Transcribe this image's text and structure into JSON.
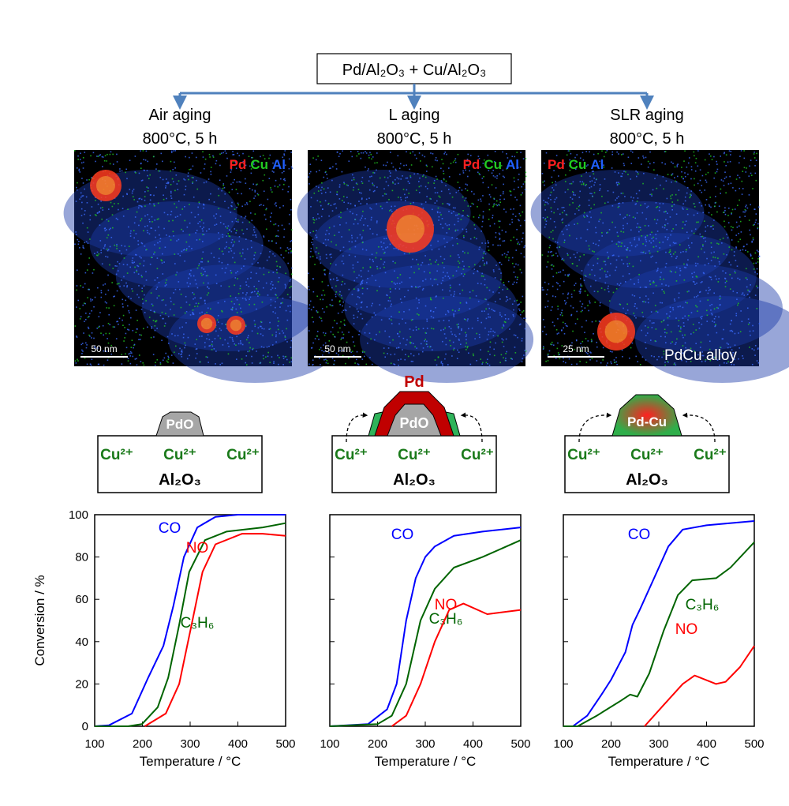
{
  "header": {
    "sample": "Pd/Al₂O₃ + Cu/Al₂O₃"
  },
  "panels": [
    {
      "title": "Air aging",
      "condition": "800°C, 5 h",
      "map_legend": [
        "Pd",
        "Cu",
        "Al"
      ],
      "scale_bar": "50 nm",
      "image_label": "",
      "schematic": {
        "particle": "PdO",
        "top_label": "",
        "ions": [
          "Cu²⁺",
          "Cu²⁺",
          "Cu²⁺"
        ],
        "support": "Al₂O₃"
      }
    },
    {
      "title": "L aging",
      "condition": "800°C, 5 h",
      "map_legend": [
        "Pd",
        "Cu",
        "Al"
      ],
      "scale_bar": "50 nm",
      "image_label": "",
      "schematic": {
        "particle": "PdO",
        "top_label": "Pd",
        "ions": [
          "Cu²⁺",
          "Cu²⁺",
          "Cu²⁺"
        ],
        "support": "Al₂O₃"
      }
    },
    {
      "title": "SLR aging",
      "condition": "800°C, 5 h",
      "map_legend": [
        "Pd",
        "Cu",
        "Al"
      ],
      "scale_bar": "25 nm",
      "image_label": "PdCu alloy",
      "schematic": {
        "particle": "Pd-Cu",
        "top_label": "",
        "ions": [
          "Cu²⁺",
          "Cu²⁺",
          "Cu²⁺"
        ],
        "support": "Al₂O₃"
      }
    }
  ],
  "colors": {
    "Pd": "#ff2020",
    "Cu": "#22cc22",
    "Al": "#2060ff",
    "CO": "#0000ff",
    "C3H6": "#006400",
    "NO": "#ff0000",
    "arrow": "#4f81bd"
  },
  "chart_data": [
    {
      "type": "line",
      "xlabel": "Temperature / °C",
      "ylabel": "Conversion / %",
      "xlim": [
        100,
        500
      ],
      "ylim": [
        0,
        100
      ],
      "xticks": [
        100,
        200,
        300,
        400,
        500
      ],
      "yticks": [
        0,
        20,
        40,
        60,
        80,
        100
      ],
      "series": [
        {
          "name": "CO",
          "x": [
            100,
            130,
            178,
            212,
            244,
            265,
            287,
            315,
            353,
            400,
            500
          ],
          "y": [
            0,
            0.5,
            6,
            23,
            38,
            57,
            80,
            94,
            99,
            100,
            100
          ]
        },
        {
          "name": "C₃H₆",
          "x": [
            100,
            170,
            199,
            232,
            254,
            277,
            298,
            331,
            376,
            452,
            500
          ],
          "y": [
            0,
            0,
            1,
            9,
            23,
            48,
            73,
            88,
            92,
            94,
            96
          ]
        },
        {
          "name": "NO",
          "x": [
            205,
            249,
            277,
            303,
            326,
            353,
            409,
            452,
            500
          ],
          "y": [
            0,
            6,
            20,
            48,
            73,
            86,
            91,
            91,
            90
          ]
        }
      ]
    },
    {
      "type": "line",
      "xlabel": "Temperature / °C",
      "ylabel": "",
      "xlim": [
        100,
        500
      ],
      "ylim": [
        0,
        100
      ],
      "xticks": [
        100,
        200,
        300,
        400,
        500
      ],
      "yticks": [
        0,
        20,
        40,
        60,
        80,
        100
      ],
      "series": [
        {
          "name": "CO",
          "x": [
            100,
            180,
            220,
            240,
            260,
            280,
            300,
            320,
            360,
            420,
            500
          ],
          "y": [
            0,
            1,
            8,
            20,
            50,
            70,
            80,
            85,
            90,
            92,
            94
          ]
        },
        {
          "name": "C₃H₆",
          "x": [
            100,
            200,
            230,
            260,
            290,
            320,
            360,
            420,
            500
          ],
          "y": [
            0,
            1,
            5,
            20,
            50,
            65,
            75,
            80,
            88
          ]
        },
        {
          "name": "NO",
          "x": [
            230,
            260,
            290,
            320,
            350,
            380,
            430,
            500
          ],
          "y": [
            0,
            5,
            20,
            40,
            55,
            58,
            53,
            55
          ]
        }
      ]
    },
    {
      "type": "line",
      "xlabel": "Temperature / °C",
      "ylabel": "",
      "xlim": [
        100,
        500
      ],
      "ylim": [
        0,
        100
      ],
      "xticks": [
        100,
        200,
        300,
        400,
        500
      ],
      "yticks": [
        0,
        20,
        40,
        60,
        80,
        100
      ],
      "series": [
        {
          "name": "CO",
          "x": [
            100,
            120,
            150,
            180,
            200,
            230,
            245,
            260,
            290,
            320,
            350,
            400,
            500
          ],
          "y": [
            0,
            0,
            5,
            15,
            22,
            35,
            48,
            55,
            70,
            85,
            93,
            95,
            97
          ]
        },
        {
          "name": "C₃H₆",
          "x": [
            100,
            130,
            170,
            220,
            240,
            255,
            280,
            310,
            340,
            370,
            420,
            450,
            500
          ],
          "y": [
            0,
            0,
            5,
            12,
            15,
            14,
            25,
            45,
            62,
            69,
            70,
            75,
            87
          ]
        },
        {
          "name": "NO",
          "x": [
            270,
            310,
            350,
            375,
            420,
            440,
            470,
            500
          ],
          "y": [
            0,
            10,
            20,
            24,
            20,
            21,
            28,
            38
          ]
        }
      ]
    }
  ]
}
